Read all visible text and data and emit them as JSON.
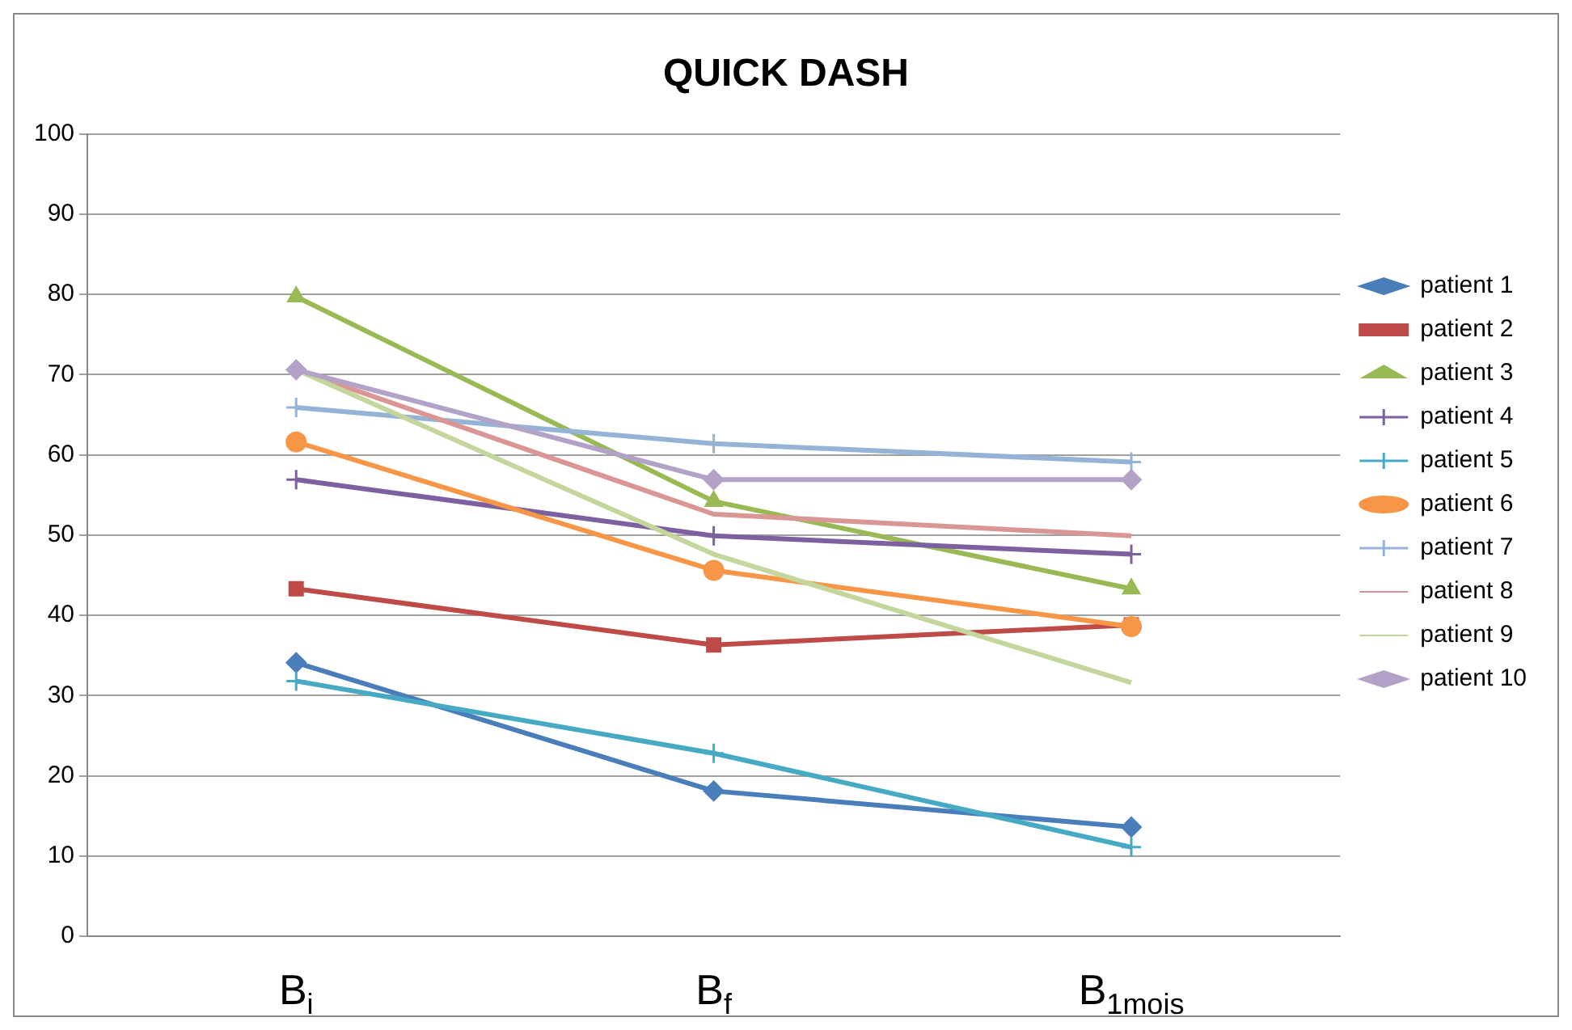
{
  "chart_data": {
    "type": "line",
    "title": "QUICK DASH",
    "categories": [
      "B$_{i}$",
      "B$_{f}$",
      "B$_{1mois}$"
    ],
    "series": [
      {
        "name": "patient 1",
        "color": "#4a7ebb",
        "marker": "diamond",
        "values": [
          34.1,
          18.1,
          13.6
        ]
      },
      {
        "name": "patient 2",
        "color": "#be4b48",
        "marker": "square",
        "values": [
          43.3,
          36.3,
          38.8
        ]
      },
      {
        "name": "patient 3",
        "color": "#98b954",
        "marker": "triangle",
        "values": [
          79.7,
          54.2,
          43.3
        ]
      },
      {
        "name": "patient 4",
        "color": "#7d60a0",
        "marker": "cross",
        "values": [
          56.9,
          49.9,
          47.6
        ]
      },
      {
        "name": "patient 5",
        "color": "#46aac5",
        "marker": "cross",
        "values": [
          31.8,
          22.8,
          11.1
        ]
      },
      {
        "name": "patient 6",
        "color": "#f79646",
        "marker": "circle",
        "values": [
          61.6,
          45.6,
          38.6
        ]
      },
      {
        "name": "patient 7",
        "color": "#95b3d7",
        "marker": "cross",
        "values": [
          65.9,
          61.4,
          59.1
        ]
      },
      {
        "name": "patient 8",
        "color": "#d99694",
        "marker": "none",
        "values": [
          70.6,
          52.6,
          49.9
        ]
      },
      {
        "name": "patient 9",
        "color": "#c3d69b",
        "marker": "none",
        "values": [
          70.6,
          47.6,
          31.6
        ]
      },
      {
        "name": "patient 10",
        "color": "#b3a2c7",
        "marker": "diamond",
        "values": [
          70.6,
          56.9,
          56.9
        ]
      }
    ],
    "ylim": [
      0,
      100
    ],
    "yticks": [
      0,
      10,
      20,
      30,
      40,
      50,
      60,
      70,
      80,
      90,
      100
    ],
    "grid": "y",
    "legend": "right",
    "line_style": "solid"
  }
}
